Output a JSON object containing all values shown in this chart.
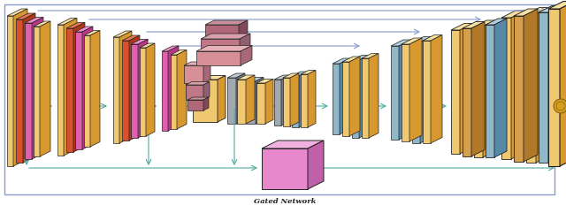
{
  "bg_color": "#ffffff",
  "border_color": "#8899cc",
  "arrow_blue": "#8899cc",
  "arrow_teal": "#55a8a0",
  "oc_face": "#f0c870",
  "oc_side": "#d89830",
  "oc_top": "#f8e0a0",
  "oc_dark_face": "#d4a050",
  "oc_dark_side": "#b07828",
  "rc_face": "#d85030",
  "rc_side": "#b03818",
  "rc_top": "#e87858",
  "pc_face": "#e060b0",
  "pc_side": "#b83888",
  "pc_top": "#f090d0",
  "bc_face": "#90b8c8",
  "bc_side": "#5888a8",
  "bc_top": "#b0d0e0",
  "gray_face": "#a0a8b0",
  "gray_side": "#707880",
  "gray_top": "#c0c8d0",
  "pink_box_face": "#e888cc",
  "pink_box_side": "#c060a8",
  "pink_box_top": "#f0b0e0",
  "skip1_face": "#d89098",
  "skip1_side": "#a86878",
  "skip1_top": "#e8b0b8",
  "skip2_face": "#c07888",
  "skip2_side": "#906070",
  "skip2_top": "#d8a0a8",
  "skip3_face": "#b06878",
  "skip3_side": "#804858",
  "skip3_top": "#c89098",
  "coin_color": "#d4a020",
  "title": "Gated Network",
  "skx": 0.55,
  "sky": 0.3
}
